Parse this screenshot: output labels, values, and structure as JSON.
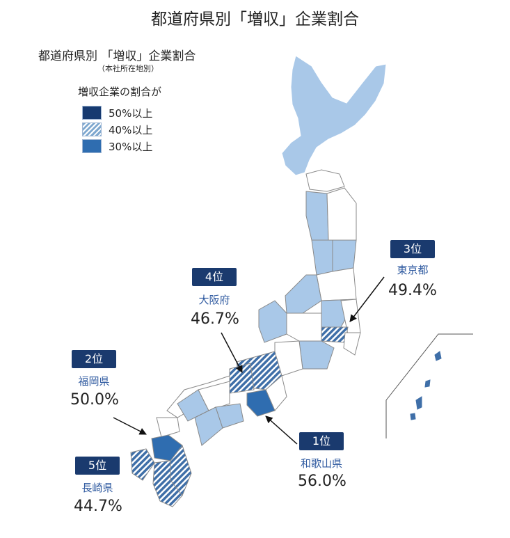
{
  "title": "都道府県別「増収」企業割合",
  "legend_box": {
    "title": "都道府県別 「増収」企業割合",
    "note": "（本社所在地別）",
    "legend_title": "増収企業の割合が",
    "items": [
      {
        "label": "50%以上",
        "color": "#173a70",
        "pattern": "solid"
      },
      {
        "label": "40%以上",
        "color": "#7fa8cf",
        "pattern": "hatch"
      },
      {
        "label": "30%以上",
        "color": "#2f6db0",
        "pattern": "solid"
      }
    ]
  },
  "colors": {
    "light": "#a9c8e8",
    "outline": "#8a8a8a",
    "badge": "#1a3a6e"
  },
  "rankings": [
    {
      "rank": "1位",
      "name": "和歌山県",
      "value": "56.0%"
    },
    {
      "rank": "2位",
      "name": "福岡県",
      "value": "50.0%"
    },
    {
      "rank": "3位",
      "name": "東京都",
      "value": "49.4%"
    },
    {
      "rank": "4位",
      "name": "大阪府",
      "value": "46.7%"
    },
    {
      "rank": "5位",
      "name": "長崎県",
      "value": "44.7%"
    }
  ]
}
